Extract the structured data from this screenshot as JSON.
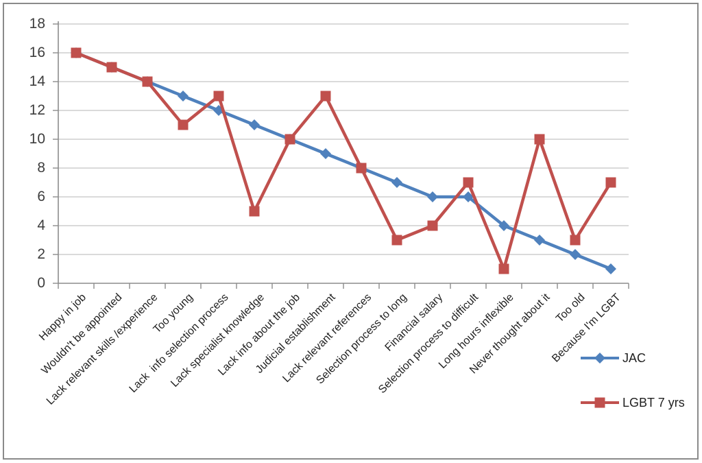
{
  "chart_data": {
    "type": "line",
    "title": "",
    "xlabel": "",
    "ylabel": "",
    "categories": [
      "Happy in job",
      "Wouldn't be appointed",
      "Lack relevant skills /experience",
      "Too young",
      "Lack  info selection process",
      "Lack specialist knowledge",
      "Lack info about the job",
      "Judicial establishment",
      "Lack relevant references",
      "Selection process to long",
      "Financial salary",
      "Selection process to difficult",
      "Long hours inflexible",
      "Never thought about it",
      "Too old",
      "Because I'm LGBT"
    ],
    "series": [
      {
        "name": "JAC",
        "color": "#4F81BD",
        "marker": "diamond",
        "values": [
          16,
          15,
          14,
          13,
          12,
          11,
          10,
          9,
          8,
          7,
          6,
          6,
          4,
          3,
          2,
          1
        ]
      },
      {
        "name": "LGBT 7 yrs",
        "color": "#C0504D",
        "marker": "square",
        "values": [
          16,
          15,
          14,
          11,
          13,
          5,
          10,
          13,
          8,
          3,
          4,
          7,
          1,
          10,
          3,
          7
        ]
      }
    ],
    "ylim": [
      0,
      18
    ],
    "ytick_step": 2,
    "y_tick_labels": [
      "0",
      "2",
      "4",
      "6",
      "8",
      "10",
      "12",
      "14",
      "16",
      "18"
    ],
    "grid": true,
    "legend_position": "bottom-right"
  },
  "colors": {
    "background": "#FFFFFF",
    "frame_border": "#8A8A8A",
    "gridline": "#C3C3C3",
    "axis": "#8C8C8C",
    "y_tick_label": "#3D3D3D",
    "x_tick_label": "#1F1F1F"
  }
}
